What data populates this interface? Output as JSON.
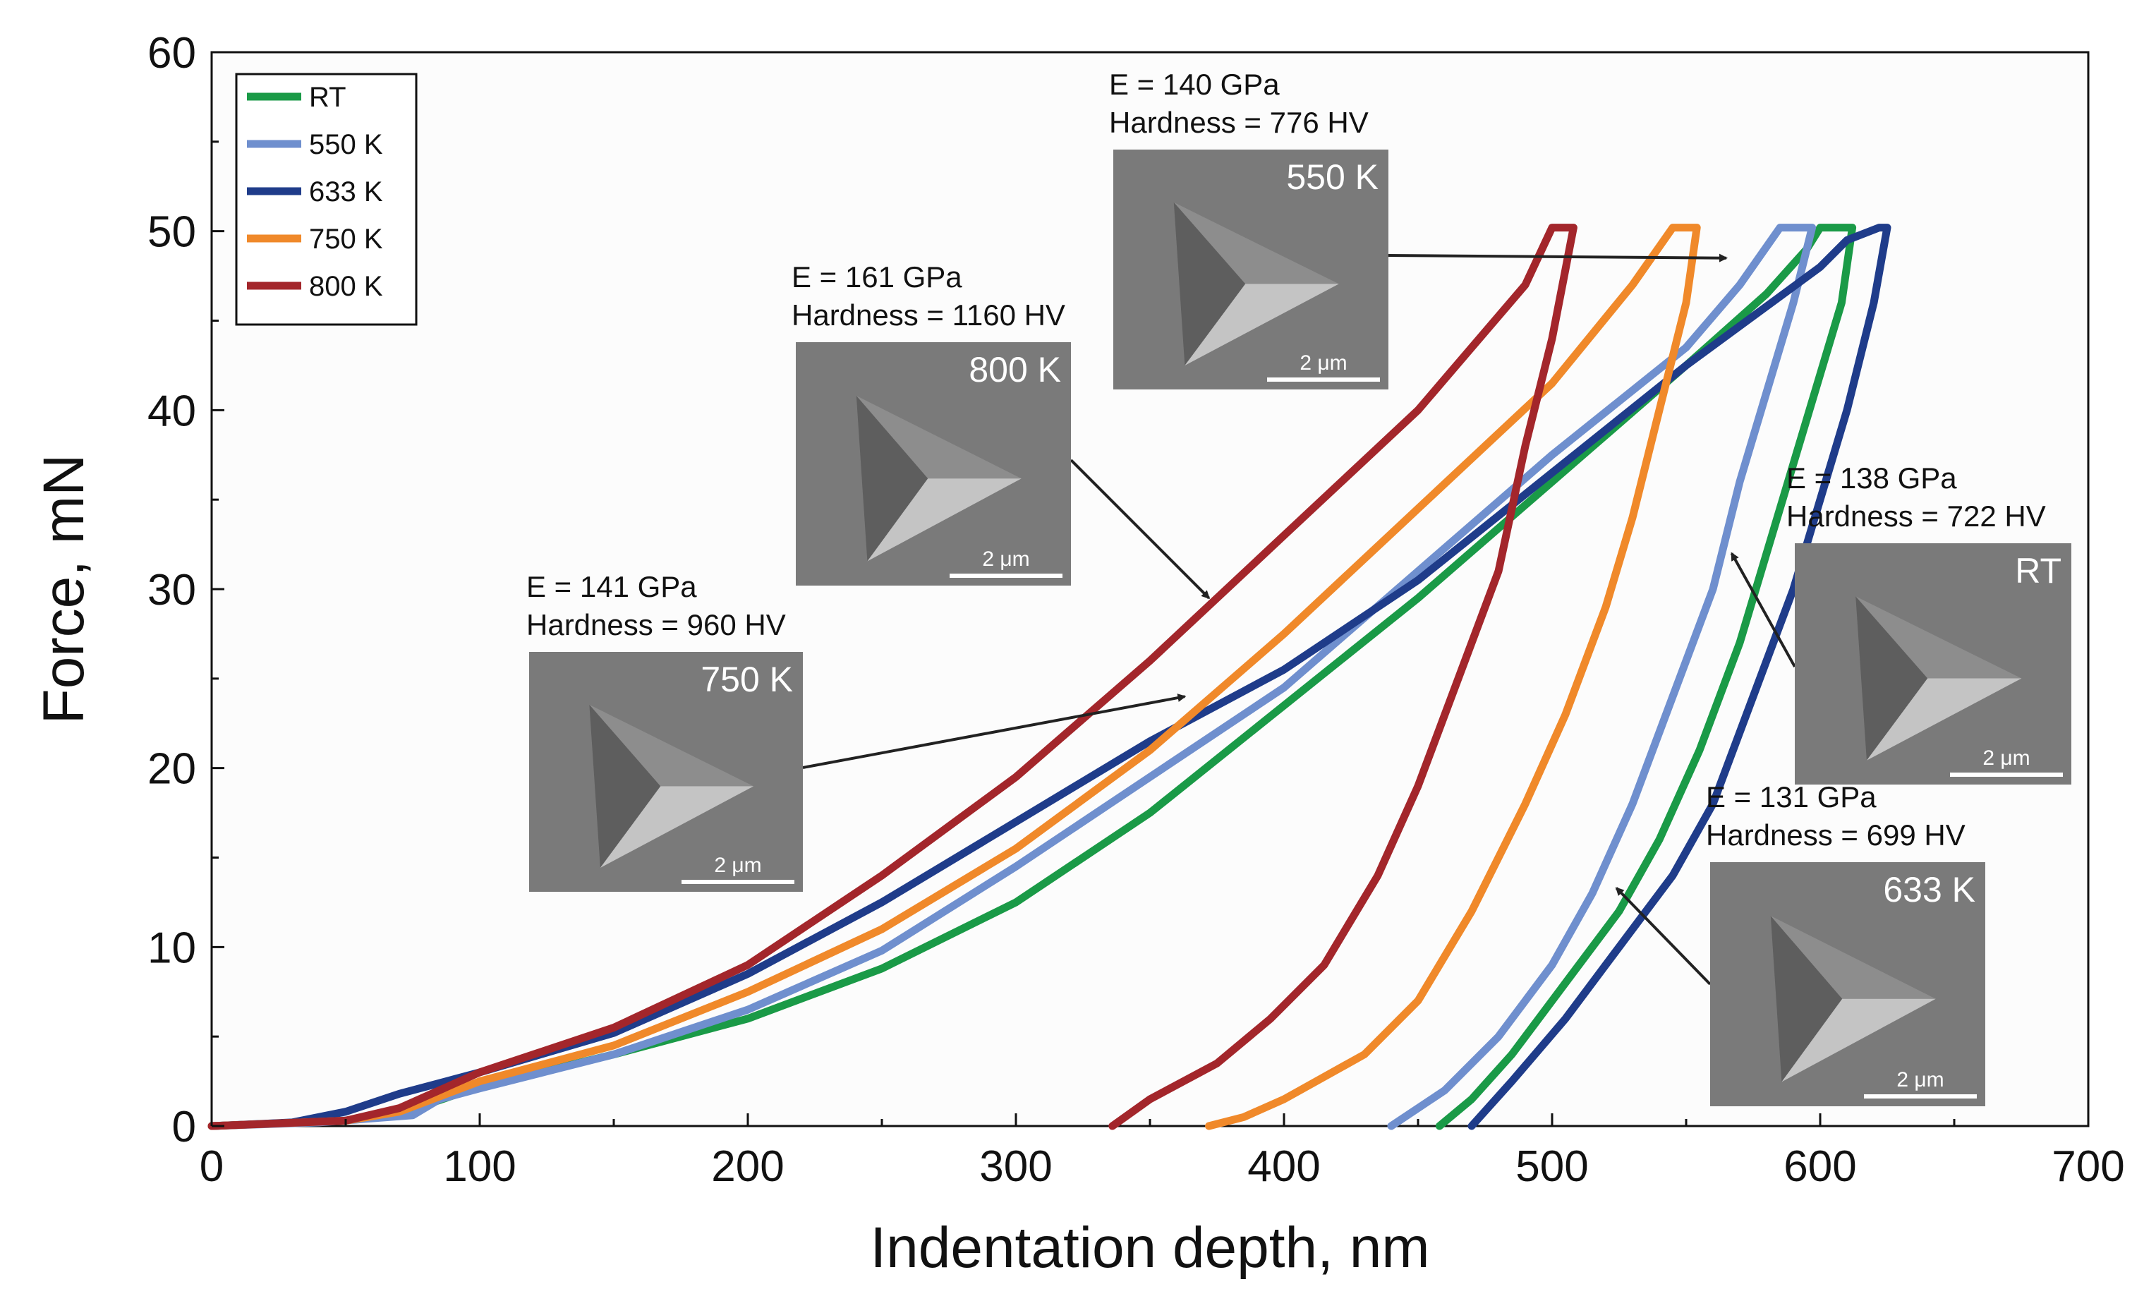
{
  "chart_data": {
    "type": "line",
    "title": "",
    "xlabel": "Indentation depth, nm",
    "ylabel": "Force, mN",
    "xlim": [
      0,
      700
    ],
    "ylim": [
      0,
      60
    ],
    "xticks": [
      "0",
      "100",
      "200",
      "300",
      "400",
      "500",
      "600",
      "700"
    ],
    "yticks": [
      "0",
      "10",
      "20",
      "30",
      "40",
      "50",
      "60"
    ],
    "grid": false,
    "legend_position": "top-left",
    "series": [
      {
        "name": "RT",
        "color": "#1a9a47",
        "loading": [
          [
            0,
            0
          ],
          [
            50,
            0.3
          ],
          [
            80,
            1.2
          ],
          [
            100,
            2.2
          ],
          [
            150,
            4.0
          ],
          [
            200,
            6.0
          ],
          [
            250,
            8.8
          ],
          [
            300,
            12.5
          ],
          [
            350,
            17.5
          ],
          [
            400,
            23.5
          ],
          [
            450,
            29.5
          ],
          [
            500,
            36.0
          ],
          [
            550,
            42.5
          ],
          [
            580,
            46.5
          ],
          [
            595,
            49.0
          ],
          [
            600,
            50.2
          ]
        ],
        "hold": [
          [
            600,
            50.2
          ],
          [
            612,
            50.2
          ]
        ],
        "unloading": [
          [
            612,
            50.2
          ],
          [
            608,
            46.0
          ],
          [
            600,
            42.0
          ],
          [
            590,
            37.0
          ],
          [
            580,
            32.0
          ],
          [
            570,
            27.0
          ],
          [
            555,
            21.0
          ],
          [
            540,
            16.0
          ],
          [
            525,
            12.0
          ],
          [
            505,
            8.0
          ],
          [
            485,
            4.0
          ],
          [
            470,
            1.5
          ],
          [
            458,
            0
          ]
        ]
      },
      {
        "name": "550 K",
        "color": "#6f8fce",
        "loading": [
          [
            0,
            0
          ],
          [
            40,
            0.2
          ],
          [
            75,
            0.6
          ],
          [
            85,
            1.5
          ],
          [
            100,
            2.1
          ],
          [
            150,
            4.0
          ],
          [
            200,
            6.5
          ],
          [
            250,
            9.8
          ],
          [
            300,
            14.5
          ],
          [
            350,
            19.5
          ],
          [
            400,
            24.5
          ],
          [
            450,
            31.0
          ],
          [
            500,
            37.5
          ],
          [
            550,
            43.5
          ],
          [
            570,
            47.0
          ],
          [
            585,
            50.2
          ]
        ],
        "hold": [
          [
            585,
            50.2
          ],
          [
            597,
            50.2
          ]
        ],
        "unloading": [
          [
            597,
            50.2
          ],
          [
            590,
            46.0
          ],
          [
            580,
            41.0
          ],
          [
            570,
            36.0
          ],
          [
            560,
            30.0
          ],
          [
            545,
            24.0
          ],
          [
            530,
            18.0
          ],
          [
            515,
            13.0
          ],
          [
            500,
            9.0
          ],
          [
            480,
            5.0
          ],
          [
            460,
            2.0
          ],
          [
            440,
            0
          ]
        ]
      },
      {
        "name": "633 K",
        "color": "#1f3c8a",
        "loading": [
          [
            0,
            0
          ],
          [
            30,
            0.2
          ],
          [
            50,
            0.8
          ],
          [
            70,
            1.8
          ],
          [
            100,
            3.0
          ],
          [
            150,
            5.2
          ],
          [
            200,
            8.5
          ],
          [
            250,
            12.5
          ],
          [
            300,
            17.0
          ],
          [
            350,
            21.5
          ],
          [
            400,
            25.5
          ],
          [
            450,
            30.5
          ],
          [
            500,
            36.5
          ],
          [
            550,
            42.5
          ],
          [
            600,
            48.0
          ],
          [
            610,
            49.5
          ],
          [
            622,
            50.2
          ]
        ],
        "hold": [
          [
            622,
            50.2
          ],
          [
            625,
            50.2
          ]
        ],
        "unloading": [
          [
            625,
            50.2
          ],
          [
            620,
            46.0
          ],
          [
            610,
            40.0
          ],
          [
            600,
            35.0
          ],
          [
            590,
            30.0
          ],
          [
            575,
            24.0
          ],
          [
            560,
            18.0
          ],
          [
            545,
            14.0
          ],
          [
            525,
            10.0
          ],
          [
            505,
            6.0
          ],
          [
            485,
            2.5
          ],
          [
            470,
            0
          ]
        ]
      },
      {
        "name": "750 K",
        "color": "#f0892a",
        "loading": [
          [
            0,
            0
          ],
          [
            50,
            0.3
          ],
          [
            70,
            0.8
          ],
          [
            100,
            2.5
          ],
          [
            150,
            4.5
          ],
          [
            200,
            7.5
          ],
          [
            250,
            11.0
          ],
          [
            300,
            15.5
          ],
          [
            350,
            21.0
          ],
          [
            400,
            27.5
          ],
          [
            450,
            34.5
          ],
          [
            500,
            41.5
          ],
          [
            530,
            47.0
          ],
          [
            545,
            50.2
          ]
        ],
        "hold": [
          [
            545,
            50.2
          ],
          [
            554,
            50.2
          ]
        ],
        "unloading": [
          [
            554,
            50.2
          ],
          [
            550,
            46.0
          ],
          [
            540,
            40.0
          ],
          [
            530,
            34.0
          ],
          [
            520,
            29.0
          ],
          [
            505,
            23.0
          ],
          [
            490,
            18.0
          ],
          [
            470,
            12.0
          ],
          [
            450,
            7.0
          ],
          [
            430,
            4.0
          ],
          [
            400,
            1.5
          ],
          [
            385,
            0.5
          ],
          [
            372,
            0
          ]
        ]
      },
      {
        "name": "800 K",
        "color": "#a3262b",
        "loading": [
          [
            0,
            0
          ],
          [
            50,
            0.3
          ],
          [
            70,
            1.0
          ],
          [
            100,
            3.0
          ],
          [
            150,
            5.5
          ],
          [
            200,
            9.0
          ],
          [
            250,
            14.0
          ],
          [
            300,
            19.5
          ],
          [
            350,
            26.0
          ],
          [
            400,
            33.0
          ],
          [
            450,
            40.0
          ],
          [
            490,
            47.0
          ],
          [
            500,
            50.2
          ]
        ],
        "hold": [
          [
            500,
            50.2
          ],
          [
            508,
            50.2
          ]
        ],
        "unloading": [
          [
            508,
            50.2
          ],
          [
            500,
            44.0
          ],
          [
            490,
            38.0
          ],
          [
            480,
            31.0
          ],
          [
            465,
            25.0
          ],
          [
            450,
            19.0
          ],
          [
            435,
            14.0
          ],
          [
            415,
            9.0
          ],
          [
            395,
            6.0
          ],
          [
            375,
            3.5
          ],
          [
            350,
            1.5
          ],
          [
            336,
            0
          ]
        ]
      }
    ],
    "annotations": [
      {
        "temp": "RT",
        "e_label": "E = 138 GPa",
        "hardness_label": "Hardness = 722 HV",
        "scale": "2 μm",
        "arrow_to": [
          567,
          32
        ]
      },
      {
        "temp": "550 K",
        "e_label": "E = 140 GPa",
        "hardness_label": "Hardness = 776 HV",
        "scale": "2 μm",
        "arrow_to": [
          565,
          48.5
        ]
      },
      {
        "temp": "633 K",
        "e_label": "E = 131 GPa",
        "hardness_label": "Hardness = 699 HV",
        "scale": "2 μm",
        "arrow_to": [
          524,
          13.3
        ]
      },
      {
        "temp": "750 K",
        "e_label": "E = 141 GPa",
        "hardness_label": "Hardness = 960 HV",
        "scale": "2 μm",
        "arrow_to": [
          363,
          24
        ]
      },
      {
        "temp": "800 K",
        "e_label": "E = 161 GPa",
        "hardness_label": "Hardness = 1160 HV",
        "scale": "2 μm",
        "arrow_to": [
          372,
          29.5
        ]
      }
    ]
  }
}
